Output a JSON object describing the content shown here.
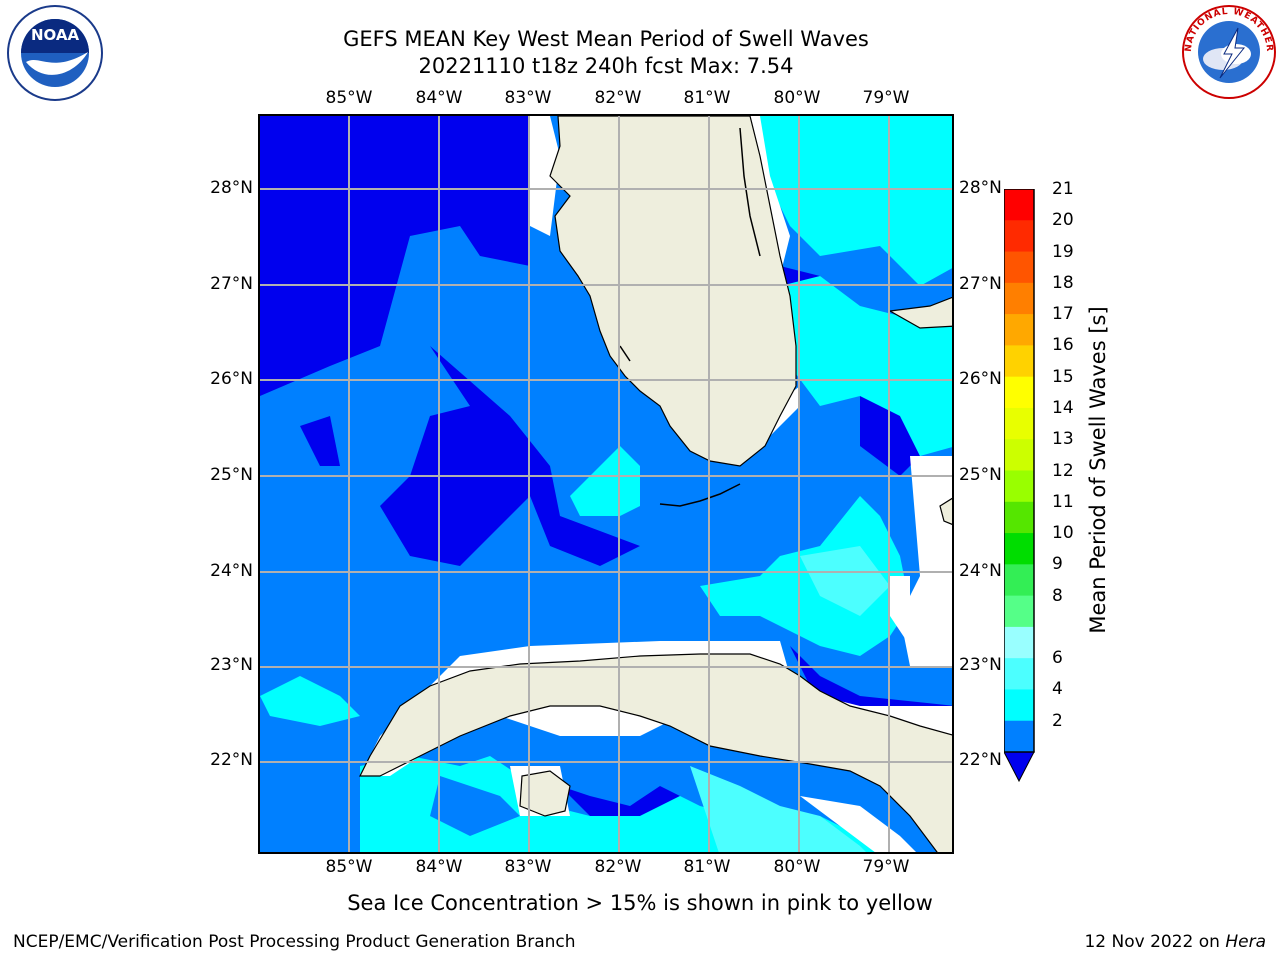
{
  "header": {
    "title_line1": "GEFS MEAN Key West Mean Period of Swell Waves",
    "title_line2": "20221110 t18z 240h fcst   Max: 7.54"
  },
  "logos": {
    "left": {
      "icon": "noaa-logo",
      "text": "NOAA"
    },
    "right": {
      "icon": "national-weather-service-logo",
      "text": "NATIONAL WEATHER SERVICE"
    }
  },
  "map": {
    "lon_ticks": [
      "85°W",
      "84°W",
      "83°W",
      "82°W",
      "81°W",
      "80°W",
      "79°W"
    ],
    "lat_ticks": [
      "28°N",
      "27°N",
      "26°N",
      "25°N",
      "24°N",
      "23°N",
      "22°N"
    ],
    "extent": {
      "lon": [
        -86.0,
        -78.25
      ],
      "lat": [
        21.0,
        28.75
      ]
    },
    "gridlines": true,
    "land_color": "#eeeedd",
    "ocean_fill_levels": [
      "#0000ee",
      "#0080ff",
      "#00ffff",
      "#4cffff"
    ]
  },
  "colorbar": {
    "title": "Mean Period of Swell Waves [s]",
    "labels": [
      "21",
      "20",
      "19",
      "18",
      "17",
      "16",
      "15",
      "14",
      "13",
      "12",
      "11",
      "10",
      "9",
      "8",
      "6",
      "4",
      "2"
    ],
    "colors": [
      "#ff0000",
      "#ff2a00",
      "#ff5500",
      "#ff7f00",
      "#ffa800",
      "#ffd200",
      "#ffff00",
      "#e8ff00",
      "#ccff00",
      "#99ff00",
      "#55e600",
      "#00dd00",
      "#33ee55",
      "#55ff88",
      "#99ffff",
      "#4cffff",
      "#00ffff",
      "#0080ff"
    ],
    "extend_min_color": "#0000ee"
  },
  "notes": {
    "ice": "Sea Ice Concentration > 15% is shown in pink to yellow"
  },
  "footer": {
    "left": "NCEP/EMC/Verification Post Processing Product Generation Branch",
    "right_prefix": "12 Nov 2022 on ",
    "right_machine": "Hera"
  }
}
